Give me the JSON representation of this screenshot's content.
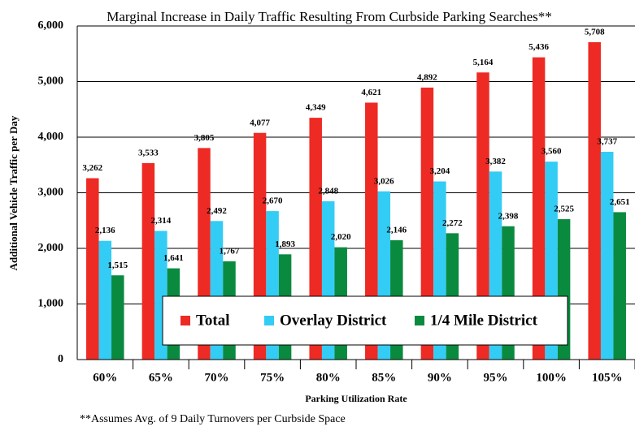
{
  "chart_data": {
    "type": "bar",
    "title": "Marginal Increase in Daily Traffic Resulting From Curbside Parking Searches**",
    "x_label": "Parking Utilization Rate",
    "y_label": "Additional Vehicle Traffic per Day",
    "footnote": "**Assumes  Avg. of  9 Daily Turnovers per Curbside Space",
    "categories": [
      "60%",
      "65%",
      "70%",
      "75%",
      "80%",
      "85%",
      "90%",
      "95%",
      "100%",
      "105%"
    ],
    "series": [
      {
        "name": "Total",
        "color": "#ee2a24",
        "values": [
          3262,
          3533,
          3805,
          4077,
          4349,
          4621,
          4892,
          5164,
          5436,
          5708
        ],
        "value_labels": [
          "3,262",
          "3,533",
          "3,805",
          "4,077",
          "4,349",
          "4,621",
          "4,892",
          "5,164",
          "5,436",
          "5,708"
        ]
      },
      {
        "name": "Overlay District",
        "color": "#33ccf5",
        "values": [
          2136,
          2314,
          2492,
          2670,
          2848,
          3026,
          3204,
          3382,
          3560,
          3737
        ],
        "value_labels": [
          "2,136",
          "2,314",
          "2,492",
          "2,670",
          "2,848",
          "3,026",
          "3,204",
          "3,382",
          "3,560",
          "3,737"
        ]
      },
      {
        "name": "1/4 Mile District",
        "color": "#0a8a3f",
        "values": [
          1515,
          1641,
          1767,
          1893,
          2020,
          2146,
          2272,
          2398,
          2525,
          2651
        ],
        "value_labels": [
          "1,515",
          "1,641",
          "1,767",
          "1,893",
          "2,020",
          "2,146",
          "2,272",
          "2,398",
          "2,525",
          "2,651"
        ]
      }
    ],
    "ylim": [
      0,
      6000
    ],
    "yticks": [
      0,
      {
        "value": 1000,
        "label": "1,000"
      },
      {
        "value": 2000,
        "label": "2,000"
      },
      {
        "value": 3000,
        "label": "3,000"
      },
      {
        "value": 4000,
        "label": "4,000"
      },
      {
        "value": 5000,
        "label": "5,000"
      },
      {
        "value": 6000,
        "label": "6,000"
      }
    ],
    "grid": true,
    "legend": "lower center"
  }
}
